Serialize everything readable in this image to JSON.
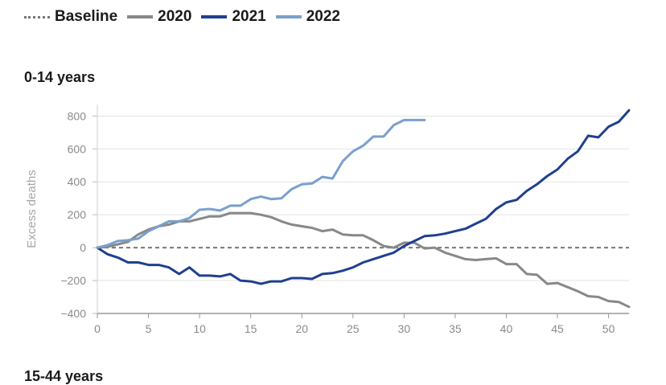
{
  "legend": [
    {
      "label": "Baseline",
      "color": "#777777",
      "style": "dotted"
    },
    {
      "label": "2020",
      "color": "#888888",
      "style": "solid"
    },
    {
      "label": "2021",
      "color": "#1f3f8f",
      "style": "solid"
    },
    {
      "label": "2022",
      "color": "#7aa0cc",
      "style": "solid"
    }
  ],
  "section_title": "0-14 years",
  "next_section_title": "15-44 years",
  "chart_data": {
    "type": "line",
    "title": "0-14 years",
    "xlabel": "",
    "ylabel": "Excess deaths",
    "xlim": [
      0,
      52
    ],
    "ylim": [
      -400,
      870
    ],
    "x_ticks": [
      0,
      5,
      10,
      15,
      20,
      25,
      30,
      35,
      40,
      45,
      50
    ],
    "y_ticks": [
      -400,
      -200,
      0,
      200,
      400,
      600,
      800
    ],
    "y_tick_labels": [
      "−400",
      "−200",
      "0",
      "200",
      "400",
      "600",
      "800"
    ],
    "grid": true,
    "legend_position": "top-left",
    "baseline": {
      "name": "Baseline",
      "value": 0
    },
    "series": [
      {
        "name": "2020",
        "color": "#888888",
        "x": [
          0,
          1,
          2,
          3,
          4,
          5,
          6,
          7,
          8,
          9,
          10,
          11,
          12,
          13,
          14,
          15,
          16,
          17,
          18,
          19,
          20,
          21,
          22,
          23,
          24,
          25,
          26,
          27,
          28,
          29,
          30,
          31,
          32,
          33,
          34,
          35,
          36,
          37,
          38,
          39,
          40,
          41,
          42,
          43,
          44,
          45,
          46,
          47,
          48,
          49,
          50,
          51,
          52
        ],
        "values": [
          0,
          5,
          20,
          35,
          80,
          110,
          130,
          140,
          160,
          160,
          175,
          190,
          190,
          210,
          210,
          210,
          200,
          185,
          160,
          140,
          130,
          120,
          100,
          110,
          80,
          75,
          75,
          45,
          10,
          0,
          30,
          30,
          -5,
          0,
          -30,
          -50,
          -70,
          -75,
          -70,
          -65,
          -100,
          -100,
          -160,
          -165,
          -220,
          -215,
          -240,
          -265,
          -295,
          -300,
          -325,
          -330,
          -360
        ]
      },
      {
        "name": "2021",
        "color": "#1f3f8f",
        "x": [
          0,
          1,
          2,
          3,
          4,
          5,
          6,
          7,
          8,
          9,
          10,
          11,
          12,
          13,
          14,
          15,
          16,
          17,
          18,
          19,
          20,
          21,
          22,
          23,
          24,
          25,
          26,
          27,
          28,
          29,
          30,
          31,
          32,
          33,
          34,
          35,
          36,
          37,
          38,
          39,
          40,
          41,
          42,
          43,
          44,
          45,
          46,
          47,
          48,
          49,
          50,
          51,
          52
        ],
        "values": [
          0,
          -40,
          -60,
          -90,
          -90,
          -105,
          -105,
          -120,
          -160,
          -120,
          -170,
          -170,
          -175,
          -160,
          -200,
          -205,
          -220,
          -205,
          -205,
          -185,
          -185,
          -190,
          -160,
          -155,
          -140,
          -120,
          -90,
          -70,
          -50,
          -30,
          10,
          40,
          70,
          75,
          85,
          100,
          115,
          145,
          175,
          235,
          275,
          290,
          345,
          385,
          435,
          475,
          540,
          585,
          680,
          670,
          735,
          765,
          835
        ]
      },
      {
        "name": "2022",
        "color": "#7aa0cc",
        "x": [
          0,
          1,
          2,
          3,
          4,
          5,
          6,
          7,
          8,
          9,
          10,
          11,
          12,
          13,
          14,
          15,
          16,
          17,
          18,
          19,
          20,
          21,
          22,
          23,
          24,
          25,
          26,
          27,
          28,
          29,
          30,
          31,
          32
        ],
        "values": [
          0,
          15,
          40,
          45,
          55,
          100,
          130,
          160,
          160,
          180,
          230,
          235,
          225,
          255,
          255,
          295,
          310,
          295,
          300,
          355,
          385,
          390,
          430,
          420,
          525,
          585,
          620,
          675,
          675,
          745,
          775,
          775,
          775
        ]
      }
    ]
  }
}
